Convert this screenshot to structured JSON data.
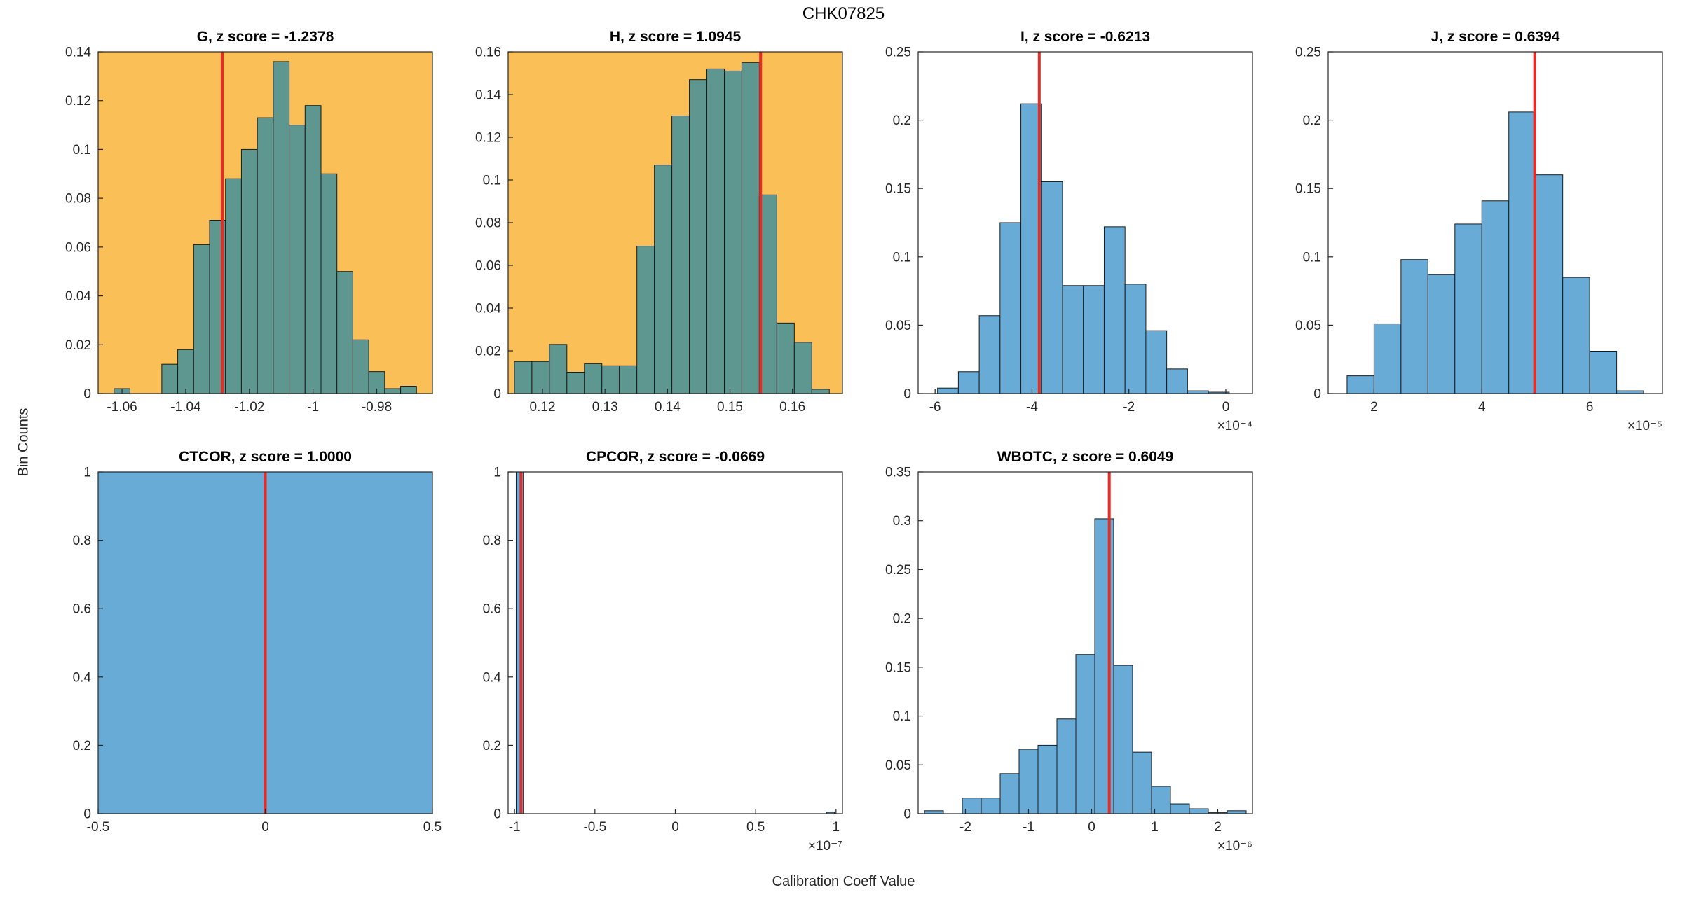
{
  "figure": {
    "title": "CHK07825",
    "ylabel": "Bin Counts",
    "xlabel": "Calibration Coeff Value"
  },
  "colors": {
    "axes_bg": "#ffffff",
    "axes_bg_highlight": "#FBBF58",
    "bar_fill": "#68ABD7",
    "bar_fill_highlight": "#5E9690",
    "bar_edge": "#1b1b1b",
    "redline": "#E92A25",
    "axis": "#262626"
  },
  "chart_data": [
    {
      "name": "G",
      "type": "bar",
      "title": "G, z score = -1.2378",
      "z_score": -1.2378,
      "highlight": true,
      "bin_start": -1.0625,
      "bin_width": 0.005,
      "counts": [
        0.002,
        0,
        0,
        0.012,
        0.018,
        0.061,
        0.071,
        0.088,
        0.1,
        0.113,
        0.136,
        0.11,
        0.118,
        0.09,
        0.05,
        0.022,
        0.009,
        0.002,
        0.003
      ],
      "xlim": [
        -1.0675,
        -0.9625
      ],
      "ylim": [
        0,
        0.14
      ],
      "xticks": [
        -1.06,
        -1.04,
        -1.02,
        -1,
        -0.98
      ],
      "yticks": [
        0,
        0.02,
        0.04,
        0.06,
        0.08,
        0.1,
        0.12,
        0.14
      ],
      "x_exp": 0,
      "x_exp_label": "",
      "redline": -1.0285,
      "row": 1,
      "col": 1
    },
    {
      "name": "H",
      "type": "bar",
      "title": "H, z score = 1.0945",
      "z_score": 1.0945,
      "highlight": true,
      "bin_start": 0.1155,
      "bin_width": 0.0028,
      "counts": [
        0.015,
        0.015,
        0.023,
        0.01,
        0.014,
        0.013,
        0.013,
        0.069,
        0.107,
        0.13,
        0.147,
        0.152,
        0.151,
        0.155,
        0.093,
        0.033,
        0.024,
        0.002
      ],
      "xlim": [
        0.1145,
        0.168
      ],
      "ylim": [
        0,
        0.16
      ],
      "xticks": [
        0.12,
        0.13,
        0.14,
        0.15,
        0.16
      ],
      "yticks": [
        0,
        0.02,
        0.04,
        0.06,
        0.08,
        0.1,
        0.12,
        0.14,
        0.16
      ],
      "x_exp": 0,
      "x_exp_label": "",
      "redline": 0.1549,
      "row": 1,
      "col": 2
    },
    {
      "name": "I",
      "type": "bar",
      "title": "I, z score = -0.6213",
      "z_score": -0.6213,
      "highlight": false,
      "bin_start": -0.000595,
      "bin_width": 4.3e-05,
      "counts": [
        0.004,
        0.016,
        0.057,
        0.125,
        0.212,
        0.155,
        0.079,
        0.079,
        0.122,
        0.08,
        0.046,
        0.018,
        0.002,
        0.001
      ],
      "xlim": [
        -0.000635,
        5.5e-05
      ],
      "ylim": [
        0,
        0.25
      ],
      "xticks": [
        -0.0006,
        -0.0004,
        -0.0002,
        0
      ],
      "yticks": [
        0,
        0.05,
        0.1,
        0.15,
        0.2,
        0.25
      ],
      "x_exp": -4,
      "x_exp_label": "×10⁻⁴",
      "redline": -0.000385,
      "row": 1,
      "col": 3
    },
    {
      "name": "J",
      "type": "bar",
      "title": "J, z score = 0.6394",
      "z_score": 0.6394,
      "highlight": false,
      "bin_start": 1.5e-05,
      "bin_width": 5e-06,
      "counts": [
        0.013,
        0.051,
        0.098,
        0.087,
        0.124,
        0.141,
        0.206,
        0.16,
        0.085,
        0.031,
        0.002
      ],
      "xlim": [
        1.15e-05,
        7.35e-05
      ],
      "ylim": [
        0,
        0.25
      ],
      "xticks": [
        2e-05,
        4e-05,
        6e-05
      ],
      "yticks": [
        0,
        0.05,
        0.1,
        0.15,
        0.2,
        0.25
      ],
      "x_exp": -5,
      "x_exp_label": "×10⁻⁵",
      "redline": 4.98e-05,
      "row": 1,
      "col": 4
    },
    {
      "name": "CTCOR",
      "type": "bar",
      "title": "CTCOR, z score = 1.0000",
      "z_score": 1.0,
      "highlight": false,
      "bars": [
        {
          "x0": -0.5,
          "x1": 0.5,
          "h": 1
        }
      ],
      "xlim": [
        -0.5,
        0.5
      ],
      "ylim": [
        0,
        1
      ],
      "xticks": [
        -0.5,
        0,
        0.5
      ],
      "yticks": [
        0,
        0.2,
        0.4,
        0.6,
        0.8,
        1
      ],
      "x_exp": 0,
      "x_exp_label": "",
      "redline": 0,
      "row": 2,
      "col": 1
    },
    {
      "name": "CPCOR",
      "type": "bar",
      "title": "CPCOR, z score = -0.0669",
      "z_score": -0.0669,
      "highlight": false,
      "bars": [
        {
          "x0": -9.9e-08,
          "x1": -9.45e-08,
          "h": 1
        },
        {
          "x0": 9.4e-08,
          "x1": 9.9e-08,
          "h": 0.004
        }
      ],
      "xlim": [
        -1.04e-07,
        1.04e-07
      ],
      "ylim": [
        0,
        1
      ],
      "xticks": [
        -1e-07,
        -5e-08,
        0,
        5e-08,
        1e-07
      ],
      "yticks": [
        0,
        0.2,
        0.4,
        0.6,
        0.8,
        1
      ],
      "x_exp": -7,
      "x_exp_label": "×10⁻⁷",
      "redline": -9.6e-08,
      "row": 2,
      "col": 2
    },
    {
      "name": "WBOTC",
      "type": "bar",
      "title": "WBOTC, z score = 0.6049",
      "z_score": 0.6049,
      "highlight": false,
      "bin_start": -2.65e-06,
      "bin_width": 3e-07,
      "counts": [
        0.003,
        0,
        0.016,
        0.016,
        0.041,
        0.066,
        0.07,
        0.097,
        0.163,
        0.302,
        0.152,
        0.063,
        0.028,
        0.01,
        0.005,
        0.001,
        0.003
      ],
      "xlim": [
        -2.75e-06,
        2.55e-06
      ],
      "ylim": [
        0,
        0.35
      ],
      "xticks": [
        -2e-06,
        -1e-06,
        0,
        1e-06,
        2e-06
      ],
      "yticks": [
        0,
        0.05,
        0.1,
        0.15,
        0.2,
        0.25,
        0.3,
        0.35
      ],
      "x_exp": -6,
      "x_exp_label": "×10⁻⁶",
      "redline": 2.8e-07,
      "row": 2,
      "col": 3
    }
  ]
}
